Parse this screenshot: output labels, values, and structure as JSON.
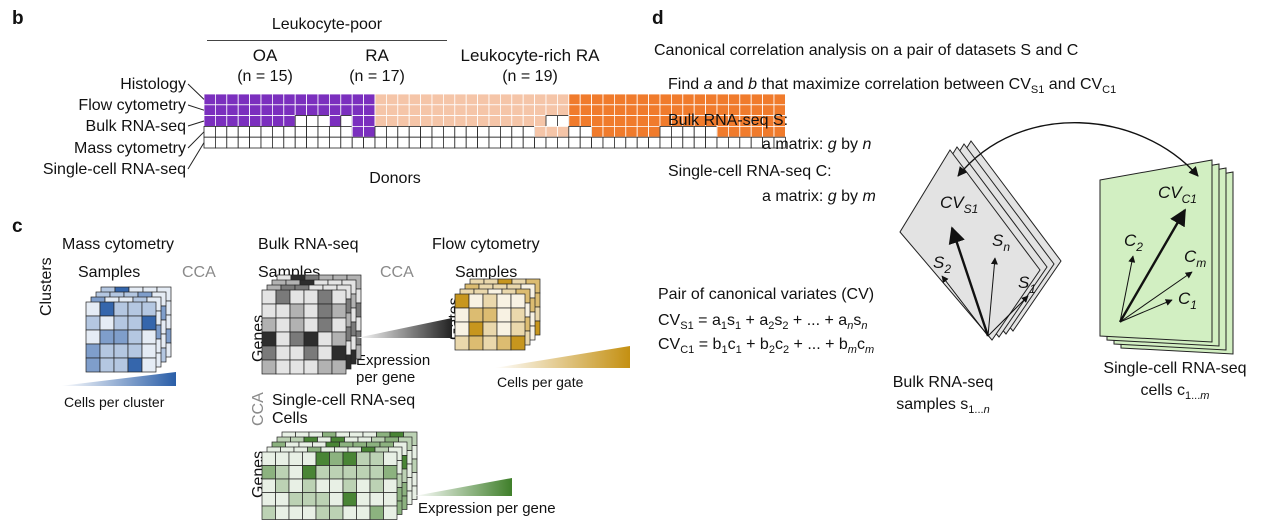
{
  "panel_b": {
    "letter": "b",
    "group_header": "Leukocyte-poor",
    "groups": [
      {
        "name": "OA",
        "n_label": "(n = 15)",
        "n": 15,
        "color": "#7b2fbe"
      },
      {
        "name": "RA",
        "n_label": "(n = 17)",
        "n": 17,
        "color": "#f5c5a8"
      },
      {
        "name": "Leukocyte-rich RA",
        "n_label": "(n = 19)",
        "n": 19,
        "color": "#f07b2c"
      }
    ],
    "rows": [
      "Histology",
      "Flow cytometry",
      "Bulk RNA-seq",
      "Mass cytometry",
      "Single-cell RNA-seq"
    ],
    "xlabel": "Donors"
  },
  "panel_c": {
    "letter": "c",
    "mass": {
      "title": "Mass cytometry",
      "columns": "Samples",
      "rows": "Clusters",
      "cca": "CCA",
      "scale": "Cells per cluster",
      "color": "#2a5ea8"
    },
    "bulk": {
      "title": "Bulk RNA-seq",
      "columns": "Samples",
      "rows": "Genes",
      "cca": "CCA",
      "scale_line1": "Expression",
      "scale_line2": "per gene",
      "color": "#222222"
    },
    "flow": {
      "title": "Flow cytometry",
      "columns": "Samples",
      "rows": "Gates",
      "scale": "Cells per gate",
      "color": "#c49012"
    },
    "sc": {
      "title": "Single-cell RNA-seq",
      "columns": "Cells",
      "rows": "Genes",
      "cca": "CCA",
      "scale": "Expression per gene",
      "color": "#3f7f2a"
    }
  },
  "panel_d": {
    "letter": "d",
    "heading": "Canonical correlation analysis on a pair of datasets S and C",
    "find_pre": "Find ",
    "find_a": "a",
    "find_and": " and ",
    "find_b": "b",
    "find_post": " that maximize correlation between CV",
    "find_sub1": "S1",
    "find_mid": " and CV",
    "find_sub2": "C1",
    "bulk_label": "Bulk RNA-seq S:",
    "bulk_matrix_pre": "a matrix: ",
    "bulk_g": "g",
    "bulk_by": " by ",
    "bulk_n": "n",
    "sc_label": "Single-cell RNA-seq C:",
    "sc_matrix_pre": "a matrix: ",
    "sc_g": "g",
    "sc_by": " by ",
    "sc_m": "m",
    "pair_label": "Pair of canonical variates (CV)",
    "eq1": "CVS1 = a1s1 + a2s2 + ... + ansn",
    "eq2": "CVC1 = b1c1 + b2c2 + ... + bmcm",
    "bulk_caption1": "Bulk RNA-seq",
    "bulk_caption2": "samples s1...n",
    "sc_caption1": "Single-cell RNA-seq",
    "sc_caption2": "cells c1...m",
    "left_vectors": [
      "CVS1",
      "Sn",
      "S2",
      "S1"
    ],
    "right_vectors": [
      "CVC1",
      "C2",
      "Cm",
      "C1"
    ],
    "left_plane_color": "#e3e3e3",
    "right_plane_color": "#d2efc2"
  }
}
